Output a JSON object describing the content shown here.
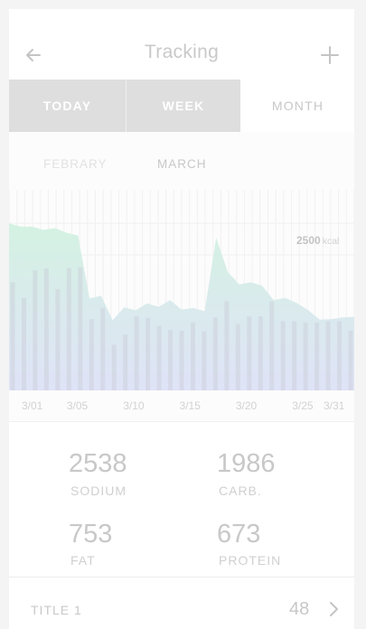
{
  "header": {
    "title": "Tracking",
    "back_icon": "arrow-left-icon",
    "add_icon": "plus-icon"
  },
  "tabs": [
    {
      "label": "TODAY",
      "active": true
    },
    {
      "label": "WEEK",
      "active": true
    },
    {
      "label": "MONTH",
      "active": false
    }
  ],
  "months": {
    "prev": "FEBRARY",
    "current": "MARCH"
  },
  "chart_data": {
    "type": "area",
    "x": [
      "3/01",
      "3/02",
      "3/03",
      "3/04",
      "3/05",
      "3/06",
      "3/07",
      "3/08",
      "3/09",
      "3/10",
      "3/11",
      "3/12",
      "3/13",
      "3/14",
      "3/15",
      "3/16",
      "3/17",
      "3/18",
      "3/19",
      "3/20",
      "3/21",
      "3/22",
      "3/23",
      "3/24",
      "3/25",
      "3/26",
      "3/27",
      "3/28",
      "3/29",
      "3/30",
      "3/31"
    ],
    "tick_labels": [
      "3/01",
      "3/05",
      "3/10",
      "3/15",
      "3/20",
      "3/25",
      "3/31"
    ],
    "series": [
      {
        "type": "area",
        "values": [
          3000,
          2940,
          2940,
          2880,
          2910,
          2830,
          2780,
          1650,
          1700,
          1260,
          1490,
          1440,
          1560,
          1500,
          1620,
          1450,
          1480,
          1420,
          2740,
          2130,
          1900,
          1940,
          1880,
          1620,
          1660,
          1570,
          1440,
          1270,
          1280,
          1310,
          1320
        ]
      },
      {
        "type": "bar",
        "values": [
          1940,
          1660,
          2160,
          2190,
          1820,
          2200,
          2210,
          1280,
          1480,
          820,
          1000,
          1330,
          1300,
          1160,
          1080,
          1070,
          1220,
          1060,
          1310,
          1600,
          1190,
          1330,
          1330,
          1600,
          1240,
          1240,
          1220,
          1220,
          1240,
          1240,
          1070
        ]
      }
    ],
    "reference_label": {
      "value": "2500",
      "unit": "kcal"
    },
    "ylim": [
      0,
      3600
    ],
    "colors": {
      "area_top": "#d4f2e2",
      "area_bottom": "#dfe3f7",
      "bars": "#cacbd8"
    },
    "grid": true
  },
  "stats": [
    {
      "value": "2538",
      "label": "SODIUM"
    },
    {
      "value": "1986",
      "label": "CARB."
    },
    {
      "value": "753",
      "label": "FAT"
    },
    {
      "value": "673",
      "label": "PROTEIN"
    }
  ],
  "list": [
    {
      "title": "TITLE 1",
      "value": "48",
      "icon": "chevron-right-icon"
    }
  ]
}
